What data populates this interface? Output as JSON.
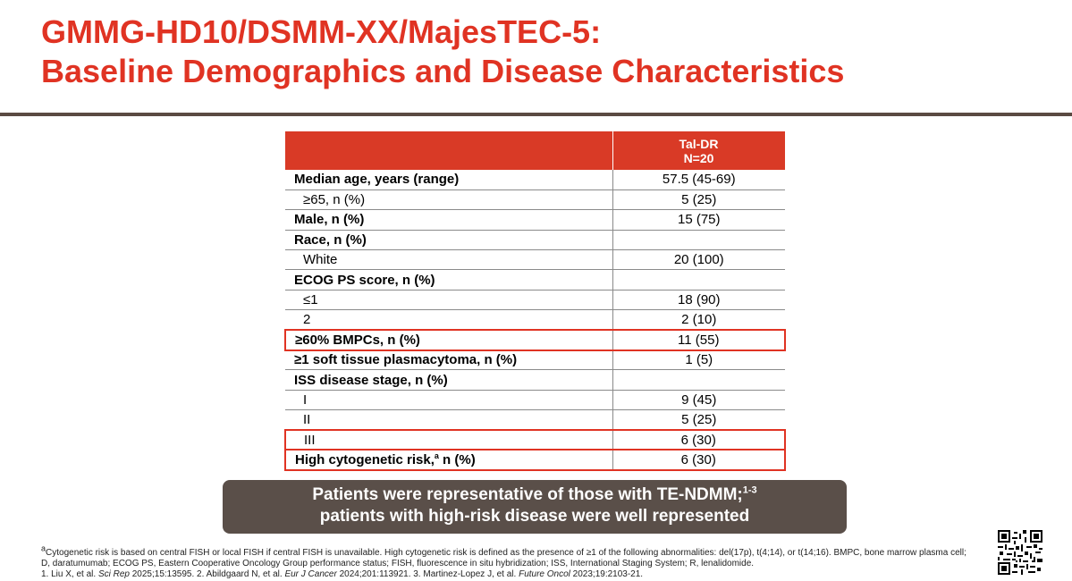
{
  "title_line1": "GMMG-HD10/DSMM-XX/MajesTEC-5:",
  "title_line2": "Baseline Demographics and Disease Characteristics",
  "table": {
    "header_line1": "Tal-DR",
    "header_line2": "N=20",
    "rows": [
      {
        "label": "Median age, years (range)",
        "value": "57.5 (45-69)"
      },
      {
        "label": "≥65, n (%)",
        "value": "5 (25)"
      },
      {
        "label": "Male, n (%)",
        "value": "15 (75)"
      },
      {
        "label": "Race, n (%)",
        "value": ""
      },
      {
        "label": "White",
        "value": "20 (100)"
      },
      {
        "label": "ECOG PS score, n (%)",
        "value": ""
      },
      {
        "label": "≤1",
        "value": "18 (90)"
      },
      {
        "label": "2",
        "value": "2 (10)"
      },
      {
        "label": "≥60% BMPCs, n (%)",
        "value": "11 (55)"
      },
      {
        "label": "≥1 soft tissue plasmacytoma, n (%)",
        "value": "1 (5)"
      },
      {
        "label": "ISS disease stage, n (%)",
        "value": ""
      },
      {
        "label": "I",
        "value": "9 (45)"
      },
      {
        "label": "II",
        "value": "5 (25)"
      },
      {
        "label": "III",
        "value": "6 (30)"
      },
      {
        "label": "High cytogenetic risk,",
        "label_sup": "a",
        "label_tail": " n (%)",
        "value": "6 (30)"
      }
    ]
  },
  "callout": {
    "line1": "Patients were representative of those with TE-NDMM;",
    "line1_sup": "1-3",
    "line2": "patients with high-risk disease were well represented"
  },
  "footnote": {
    "marker": "a",
    "text": "Cytogenetic risk is based on central FISH or local FISH if central FISH is unavailable. High cytogenetic risk is defined as the presence of ≥1 of the following abnormalities: del(17p), t(4;14), or t(14;16). BMPC, bone marrow plasma cell; D, daratumumab; ECOG PS, Eastern Cooperative Oncology Group performance status; FISH, fluorescence in situ hybridization; ISS, International Staging System; R, lenalidomide.",
    "ref1_a": "1. Liu X, et al. ",
    "ref1_j": "Sci Rep",
    "ref1_b": " 2025;15:13595. ",
    "ref2_a": "2. Abildgaard N, et al. ",
    "ref2_j": "Eur J Cancer",
    "ref2_b": " 2024;201:113921. ",
    "ref3_a": "3. Martinez-Lopez J, et al. ",
    "ref3_j": "Future Oncol",
    "ref3_b": " 2023;19:2103-21."
  },
  "colors": {
    "title": "#e03323",
    "header_fill": "#d93a26",
    "callout_fill": "#5a4f49",
    "highlight_border": "#e03323"
  }
}
